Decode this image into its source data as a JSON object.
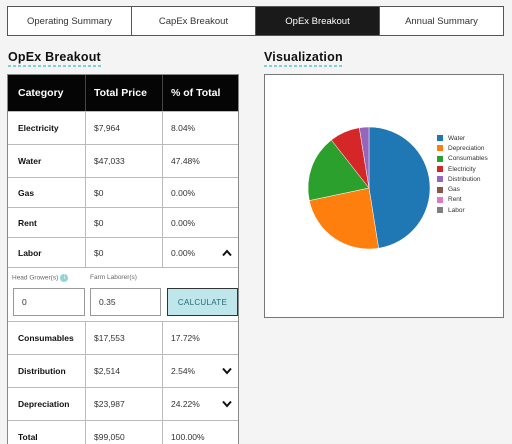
{
  "tabs": [
    {
      "label": "Operating Summary",
      "active": false
    },
    {
      "label": "CapEx Breakout",
      "active": false
    },
    {
      "label": "OpEx Breakout",
      "active": true
    },
    {
      "label": "Annual Summary",
      "active": false
    }
  ],
  "left_heading": "OpEx Breakout",
  "right_heading": "Visualization",
  "table": {
    "headers": [
      "Category",
      "Total Price",
      "% of Total"
    ],
    "rows_top": [
      {
        "category": "Electricity",
        "price": "$7,964",
        "pct": "8.04%"
      },
      {
        "category": "Water",
        "price": "$47,033",
        "pct": "47.48%"
      },
      {
        "category": "Gas",
        "price": "$0",
        "pct": "0.00%"
      },
      {
        "category": "Rent",
        "price": "$0",
        "pct": "0.00%"
      },
      {
        "category": "Labor",
        "price": "$0",
        "pct": "0.00%"
      }
    ],
    "labor_inputs": {
      "head_growers_label": "Head Grower(s)",
      "head_growers_value": "0",
      "info_icon": "i",
      "farm_laborers_label": "Farm Laborer(s)",
      "farm_laborers_value": "0.35",
      "calculate_label": "CALCULATE"
    },
    "rows_bottom": [
      {
        "category": "Consumables",
        "price": "$17,553",
        "pct": "17.72%"
      },
      {
        "category": "Distribution",
        "price": "$2,514",
        "pct": "2.54%"
      },
      {
        "category": "Depreciation",
        "price": "$23,987",
        "pct": "24.22%"
      }
    ],
    "total": {
      "category": "Total",
      "price": "$99,050",
      "pct": "100.00%"
    }
  },
  "chart_data": {
    "type": "pie",
    "slices": [
      {
        "label": "Water",
        "value": 47.48,
        "color": "#1f77b4"
      },
      {
        "label": "Depreciation",
        "value": 24.22,
        "color": "#ff7f0e"
      },
      {
        "label": "Consumables",
        "value": 17.72,
        "color": "#2ca02c"
      },
      {
        "label": "Electricity",
        "value": 8.04,
        "color": "#d62728"
      },
      {
        "label": "Distribution",
        "value": 2.54,
        "color": "#9467bd"
      },
      {
        "label": "Gas",
        "value": 0,
        "color": "#8c564b"
      },
      {
        "label": "Rent",
        "value": 0,
        "color": "#e377c2"
      },
      {
        "label": "Labor",
        "value": 0,
        "color": "#7f7f7f"
      }
    ],
    "legend_placement": "right"
  }
}
